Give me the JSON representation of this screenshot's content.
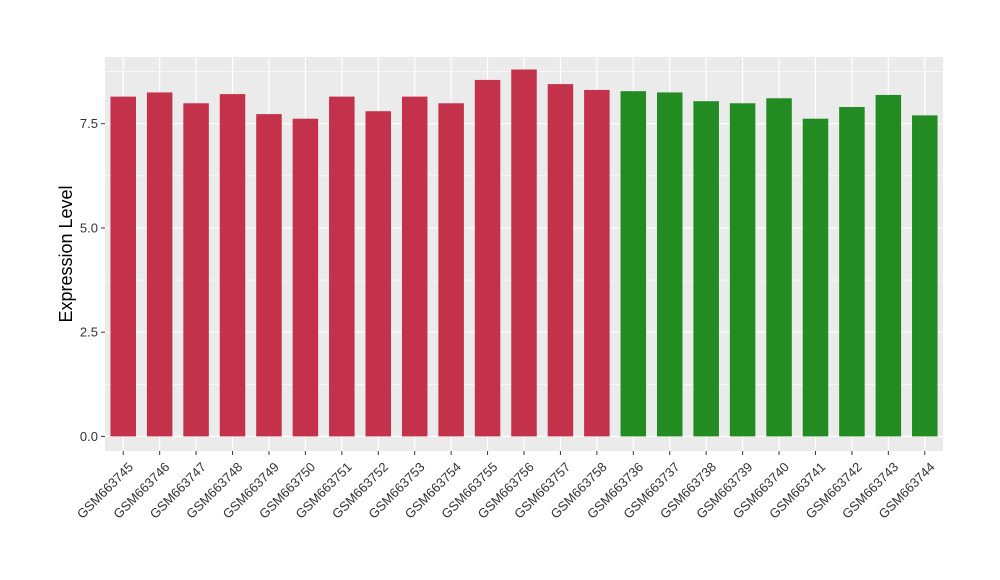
{
  "chart_data": {
    "type": "bar",
    "title": "",
    "xlabel": "",
    "ylabel": "Expression Level",
    "ylim": [
      -0.35,
      9.1
    ],
    "yticks": [
      0.0,
      2.5,
      5.0,
      7.5
    ],
    "ytick_labels": [
      "0.0",
      "2.5",
      "5.0",
      "7.5"
    ],
    "grid": true,
    "legend": "none",
    "panel_background": "#EBEBEB",
    "grid_color": "#FFFFFF",
    "categories": [
      "GSM663745",
      "GSM663746",
      "GSM663747",
      "GSM663748",
      "GSM663749",
      "GSM663750",
      "GSM663751",
      "GSM663752",
      "GSM663753",
      "GSM663754",
      "GSM663755",
      "GSM663756",
      "GSM663757",
      "GSM663758",
      "GSM663736",
      "GSM663737",
      "GSM663738",
      "GSM663739",
      "GSM663740",
      "GSM663741",
      "GSM663742",
      "GSM663743",
      "GSM663744"
    ],
    "values": [
      8.15,
      8.25,
      7.99,
      8.21,
      7.73,
      7.62,
      8.15,
      7.8,
      8.15,
      7.99,
      8.55,
      8.8,
      8.45,
      8.31,
      8.28,
      8.25,
      8.04,
      7.99,
      8.11,
      7.62,
      7.9,
      8.19,
      7.7
    ],
    "colors": [
      "#C3314A",
      "#C3314A",
      "#C3314A",
      "#C3314A",
      "#C3314A",
      "#C3314A",
      "#C3314A",
      "#C3314A",
      "#C3314A",
      "#C3314A",
      "#C3314A",
      "#C3314A",
      "#C3314A",
      "#C3314A",
      "#228B22",
      "#228B22",
      "#228B22",
      "#228B22",
      "#228B22",
      "#228B22",
      "#228B22",
      "#228B22",
      "#228B22"
    ]
  }
}
